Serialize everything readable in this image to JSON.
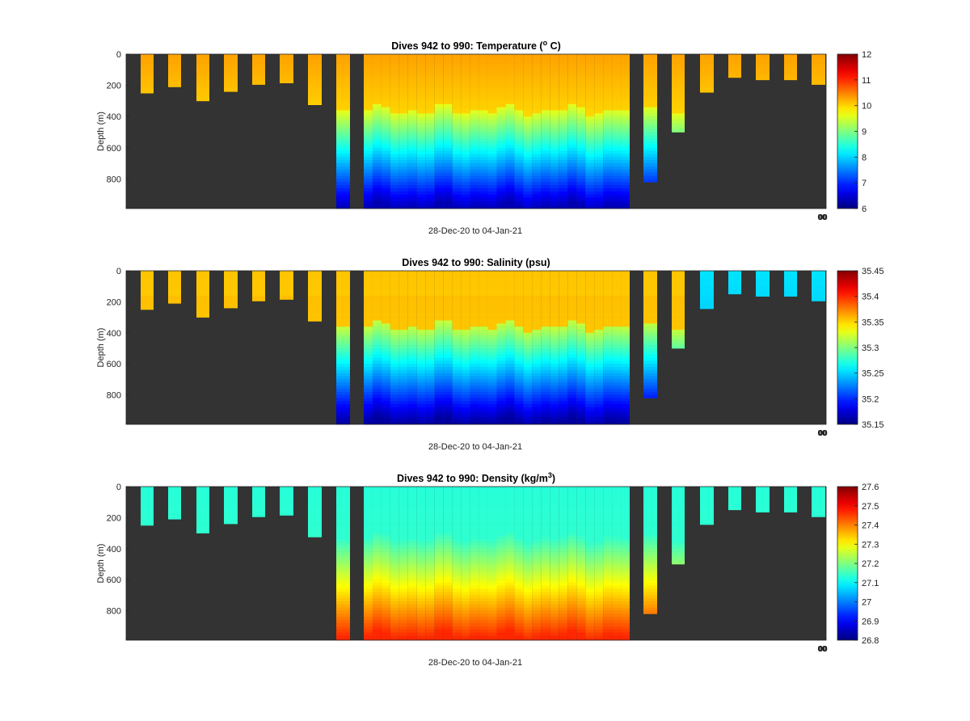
{
  "chart_data": [
    {
      "type": "heatmap",
      "title": "Dives 942 to 990: Temperature (",
      "title_sup": "o",
      "title_tail": " C)",
      "ylabel": "Depth (m)",
      "xlabel": "28-Dec-20 to 04-Jan-21",
      "xtick_label": "00",
      "ylim": [
        0,
        990
      ],
      "yticks": [
        0,
        200,
        400,
        600,
        800
      ],
      "colorbar": {
        "min": 6,
        "max": 12,
        "ticks": [
          6,
          7,
          8,
          9,
          10,
          11,
          12
        ]
      },
      "surface_value": 10.3,
      "deep_value": 6.3
    },
    {
      "type": "heatmap",
      "title": "Dives 942 to 990: Salinity (psu)",
      "title_sup": "",
      "title_tail": "",
      "ylabel": "Depth (m)",
      "xlabel": "28-Dec-20 to 04-Jan-21",
      "xtick_label": "00",
      "ylim": [
        0,
        990
      ],
      "yticks": [
        0,
        200,
        400,
        600,
        800
      ],
      "colorbar": {
        "min": 35.15,
        "max": 35.45,
        "ticks": [
          35.15,
          35.2,
          35.25,
          35.3,
          35.35,
          35.4,
          35.45
        ]
      },
      "surface_value": 35.355,
      "deep_value": 35.16,
      "late_surface_value": 35.255
    },
    {
      "type": "heatmap",
      "title": "Dives 942 to 990: Density (kg/m",
      "title_sup": "3",
      "title_tail": ")",
      "ylabel": "Depth (m)",
      "xlabel": "28-Dec-20 to 04-Jan-21",
      "xtick_label": "00",
      "ylim": [
        0,
        990
      ],
      "yticks": [
        0,
        200,
        400,
        600,
        800
      ],
      "colorbar": {
        "min": 26.8,
        "max": 27.6,
        "ticks": [
          26.8,
          26.9,
          27,
          27.1,
          27.2,
          27.3,
          27.4,
          27.5,
          27.6
        ]
      },
      "surface_value": 27.13,
      "deep_value": 27.47
    }
  ],
  "dives": {
    "first": 942,
    "last": 990,
    "profiles": [
      {
        "max_depth": 250
      },
      {
        "max_depth": 210
      },
      {
        "max_depth": 300
      },
      {
        "max_depth": 240
      },
      {
        "max_depth": 195
      },
      {
        "max_depth": 185
      },
      {
        "max_depth": 325
      },
      {
        "max_depth": 990
      },
      {
        "max_depth": 0
      },
      {
        "max_depth": 990
      },
      {
        "max_depth": 990
      },
      {
        "max_depth": 990
      },
      {
        "max_depth": 990
      },
      {
        "max_depth": 990
      },
      {
        "max_depth": 990
      },
      {
        "max_depth": 990
      },
      {
        "max_depth": 990
      },
      {
        "max_depth": 990
      },
      {
        "max_depth": 990
      },
      {
        "max_depth": 990
      },
      {
        "max_depth": 990
      },
      {
        "max_depth": 990
      },
      {
        "max_depth": 990
      },
      {
        "max_depth": 990
      },
      {
        "max_depth": 990
      },
      {
        "max_depth": 990
      },
      {
        "max_depth": 990
      },
      {
        "max_depth": 990
      },
      {
        "max_depth": 990
      },
      {
        "max_depth": 990
      },
      {
        "max_depth": 990
      },
      {
        "max_depth": 990
      },
      {
        "max_depth": 990
      },
      {
        "max_depth": 990
      },
      {
        "max_depth": 990
      },
      {
        "max_depth": 990
      },
      {
        "max_depth": 990
      },
      {
        "max_depth": 990
      },
      {
        "max_depth": 990
      },
      {
        "max_depth": 0
      },
      {
        "max_depth": 820
      },
      {
        "max_depth": 500
      },
      {
        "max_depth": 245
      },
      {
        "max_depth": 150
      },
      {
        "max_depth": 165
      },
      {
        "max_depth": 165
      },
      {
        "max_depth": 195
      }
    ]
  },
  "colors": {
    "axes_background": "#333333",
    "grid": "none"
  }
}
